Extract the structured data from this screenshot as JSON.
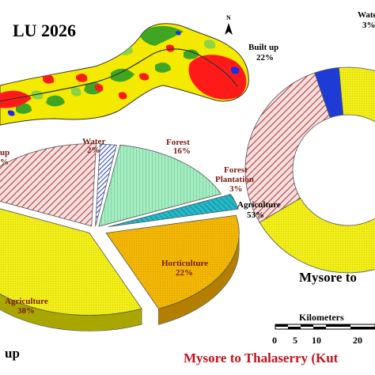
{
  "figure": {
    "map_title": "LU 2026",
    "north_label": "N",
    "bottom_left_text": "up",
    "bottom_title": "Mysore to Thalaserry (Kut",
    "right_title": "Mysore to",
    "scale": {
      "label": "Kilometers",
      "ticks": [
        "0",
        "5",
        "10",
        "20"
      ]
    }
  },
  "map_colors": {
    "agriculture": "#f3ea00",
    "built_up": "#ff1a1a",
    "forest": "#1e9a28",
    "plantation": "#7fd14a",
    "water": "#1a2ee6"
  },
  "chart_data": [
    {
      "type": "pie",
      "title": "",
      "categories": [
        "Water",
        "Forest",
        "Forest Plantation",
        "Horticulture",
        "Agriculture",
        "Built up"
      ],
      "series": [
        {
          "values": [
            2,
            16,
            3,
            22,
            38,
            19
          ]
        }
      ],
      "colors": [
        "#1f3bd6",
        "#9be3b6",
        "#1fb5c4",
        "#f2b705",
        "#f1ee1a",
        "#e8a4a4"
      ],
      "visible_labels": {
        "Water": {
          "name": "Water",
          "value": "2%"
        },
        "Forest": {
          "name": "Forest",
          "value": "16%"
        },
        "Forest Plantation": {
          "name": "Forest Plantation",
          "name_line1": "Forest",
          "name_line2": "Plantation",
          "value": "3%"
        },
        "Horticulture": {
          "name": "Horticulture",
          "value": "22%"
        },
        "Agriculture": {
          "name": "Agriculture",
          "value": "38%"
        },
        "Built up": {
          "name": "up",
          "value": "%"
        }
      }
    },
    {
      "type": "pie",
      "subtype": "doughnut",
      "title": "",
      "categories": [
        "Built up",
        "Agriculture",
        "Water"
      ],
      "series": [
        {
          "values": [
            22,
            53,
            3
          ]
        }
      ],
      "colors": [
        "#e7a6a6",
        "#f1ee1a",
        "#1f3bd6"
      ],
      "visible_labels": {
        "Built up": {
          "name": "Built up",
          "value": "22%"
        },
        "Agriculture": {
          "name": "Agriculture",
          "value": "53%"
        },
        "Water": {
          "name": "Wate",
          "value": "3%"
        }
      }
    }
  ]
}
